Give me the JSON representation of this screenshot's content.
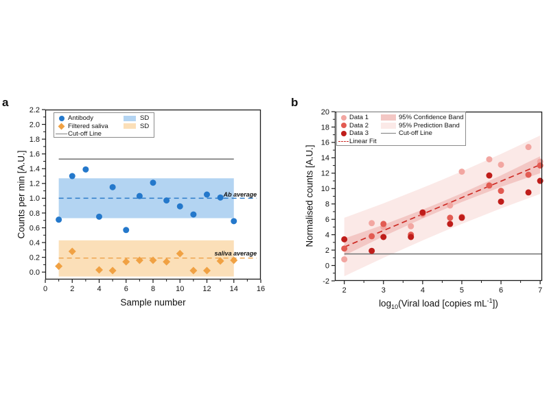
{
  "figure": {
    "background": "#ffffff",
    "panels": [
      {
        "letter": "a"
      },
      {
        "letter": "b"
      }
    ]
  },
  "chart_data": [
    {
      "type": "scatter",
      "panel": "a",
      "xlabel": "Sample number",
      "ylabel": "Counts per min [A.U.]",
      "xlim": [
        0,
        16
      ],
      "ylim": [
        -0.1,
        2.2
      ],
      "grid": false,
      "legend_position": "top-left",
      "xticks": [
        0,
        2,
        4,
        6,
        8,
        10,
        12,
        14,
        16
      ],
      "xminor": [
        1,
        3,
        5,
        7,
        9,
        11,
        13,
        15
      ],
      "yticks": [
        0,
        0.2,
        0.4,
        0.6,
        0.8,
        1.0,
        1.2,
        1.4,
        1.6,
        1.8,
        2.0,
        2.2
      ],
      "yticklabels": [
        "0.0",
        "0.2",
        "0.4",
        "0.6",
        "0.8",
        "1.0",
        "1.2",
        "1.4",
        "1.6",
        "1.8",
        "2.0",
        "2.2"
      ],
      "yminor": [
        0.1,
        0.3,
        0.5,
        0.7,
        0.9,
        1.1,
        1.3,
        1.5,
        1.7,
        1.9,
        2.1
      ],
      "bands": [
        {
          "name": "antibody-sd-band",
          "label": "SD",
          "x0": 1,
          "x1": 14,
          "y0": 0.73,
          "y1": 1.27,
          "color": "#b3d4f2"
        },
        {
          "name": "saliva-sd-band",
          "label": "SD",
          "x0": 1,
          "x1": 14,
          "y0": -0.06,
          "y1": 0.43,
          "color": "#fbdfb8"
        }
      ],
      "lines": [
        {
          "name": "cutoff-line",
          "label": "Cut-off Line",
          "color": "#7f7f7f",
          "width": 1.7,
          "points": [
            [
              1,
              1.53
            ],
            [
              14,
              1.53
            ]
          ]
        },
        {
          "name": "ab-average-line",
          "label": "Ab average",
          "color": "#2b7bc9",
          "width": 1.5,
          "dash": "7 5",
          "points": [
            [
              1,
              1.0
            ],
            [
              15.7,
              1.0
            ]
          ]
        },
        {
          "name": "saliva-average-line",
          "label": "saliva average",
          "color": "#efa54f",
          "width": 1.5,
          "dash": "7 5",
          "points": [
            [
              1,
              0.19
            ],
            [
              15.7,
              0.19
            ]
          ]
        }
      ],
      "series": [
        {
          "name": "Antibody",
          "marker": "circle",
          "color": "#2478cb",
          "x": [
            1,
            2,
            3,
            4,
            5,
            6,
            7,
            8,
            9,
            10,
            11,
            12,
            13,
            14
          ],
          "y": [
            0.71,
            1.3,
            1.39,
            0.75,
            1.15,
            0.57,
            1.03,
            1.21,
            0.97,
            0.89,
            0.78,
            1.05,
            1.01,
            0.69
          ]
        },
        {
          "name": "Filtered saliva",
          "marker": "diamond",
          "color": "#f0a143",
          "x": [
            1,
            2,
            4,
            5,
            6,
            7,
            8,
            9,
            10,
            11,
            12,
            13,
            14
          ],
          "y": [
            0.08,
            0.28,
            0.03,
            0.02,
            0.14,
            0.16,
            0.16,
            0.14,
            0.25,
            0.02,
            0.02,
            0.15,
            0.16
          ]
        }
      ],
      "annotations": [
        {
          "text": "Ab average",
          "x": 15.7,
          "y": 1.02,
          "anchor": "end",
          "color": "#2b7bc9"
        },
        {
          "text": "saliva average",
          "x": 15.7,
          "y": 0.225,
          "anchor": "end",
          "color": "#f0a04a"
        }
      ],
      "legend": [
        "Antibody",
        "Filtered saliva",
        "Cut-off Line",
        "SD",
        "SD"
      ]
    },
    {
      "type": "scatter",
      "panel": "b",
      "xlabel": "log₁₀(Viral load [copies mL⁻¹])",
      "xlabel_parts": {
        "pre": "log",
        "sub": "10",
        "mid": "(Viral load [copies mL",
        "sup": "-1",
        "post": "])"
      },
      "ylabel": "Normalised counts [A.U.]",
      "xlim": [
        1.76,
        7.05
      ],
      "ylim": [
        -2,
        20
      ],
      "grid": false,
      "legend_position": "top-left",
      "xticks": [
        2,
        3,
        4,
        5,
        6,
        7
      ],
      "xminor": [
        2.5,
        3.5,
        4.5,
        5.5,
        6.5
      ],
      "yticks": [
        -2,
        0,
        2,
        4,
        6,
        8,
        10,
        12,
        14,
        16,
        18,
        20
      ],
      "yminor": [
        -1,
        1,
        3,
        5,
        7,
        9,
        11,
        13,
        15,
        17,
        19
      ],
      "bands": [
        {
          "name": "prediction-band",
          "label": "95% Prediction Band",
          "color": "#fbe9e7",
          "xs": [
            2,
            3,
            4,
            4.5,
            5,
            6,
            7
          ],
          "upper": [
            6.2,
            8.08,
            10.1,
            11.15,
            12.24,
            14.5,
            16.9
          ],
          "lower": [
            -1.4,
            1.0,
            3.26,
            4.35,
            5.4,
            7.42,
            9.3
          ]
        },
        {
          "name": "confidence-band",
          "label": "95% Confidence Band",
          "color": "#f3c7c4",
          "xs": [
            2,
            3,
            4,
            4.5,
            5,
            6,
            7
          ],
          "upper": [
            3.5,
            5.29,
            7.25,
            8.3,
            9.39,
            11.71,
            14.2
          ],
          "lower": [
            1.3,
            3.79,
            6.11,
            7.2,
            8.25,
            10.21,
            12.0
          ]
        }
      ],
      "lines": [
        {
          "name": "cutoff-line",
          "label": "Cut-off Line",
          "color": "#7a7a7a",
          "width": 1.7,
          "points": [
            [
              2,
              1.5
            ],
            [
              7.05,
              1.5
            ]
          ]
        },
        {
          "name": "linear-fit",
          "label": "Linear Fit",
          "color": "#cd2a24",
          "width": 1.7,
          "dash": "8 5",
          "points": [
            [
              2,
              2.4
            ],
            [
              7,
              13.1
            ]
          ]
        }
      ],
      "series": [
        {
          "name": "Data 1",
          "marker": "circle",
          "color": "#f2a6a1",
          "x": [
            2,
            2.7,
            3,
            3.7,
            4,
            4.7,
            5,
            5.7,
            6,
            6.7,
            7
          ],
          "y": [
            0.8,
            5.5,
            5.0,
            5.1,
            6.6,
            7.8,
            12.2,
            13.8,
            13.1,
            15.4,
            13.5
          ]
        },
        {
          "name": "Data 2",
          "marker": "circle",
          "color": "#e25b52",
          "x": [
            2,
            2.7,
            3,
            3.7,
            4,
            4.7,
            5,
            5.7,
            6,
            6.7,
            7
          ],
          "y": [
            2.2,
            3.8,
            5.4,
            4.0,
            6.8,
            6.2,
            6.3,
            10.4,
            9.7,
            11.8,
            13.0
          ]
        },
        {
          "name": "Data 3",
          "marker": "circle",
          "color": "#bf1d1a",
          "x": [
            2,
            2.7,
            3,
            3.7,
            4,
            4.7,
            5,
            5.7,
            6,
            6.7,
            7
          ],
          "y": [
            3.4,
            1.9,
            3.7,
            3.7,
            6.9,
            5.4,
            6.2,
            11.7,
            8.3,
            9.5,
            11.0
          ]
        }
      ],
      "annotations": [],
      "legend": [
        "Data 1",
        "Data 2",
        "Data 3",
        "Linear Fit",
        "95% Confidence Band",
        "95% Prediction Band",
        "Cut-off Line"
      ]
    }
  ]
}
